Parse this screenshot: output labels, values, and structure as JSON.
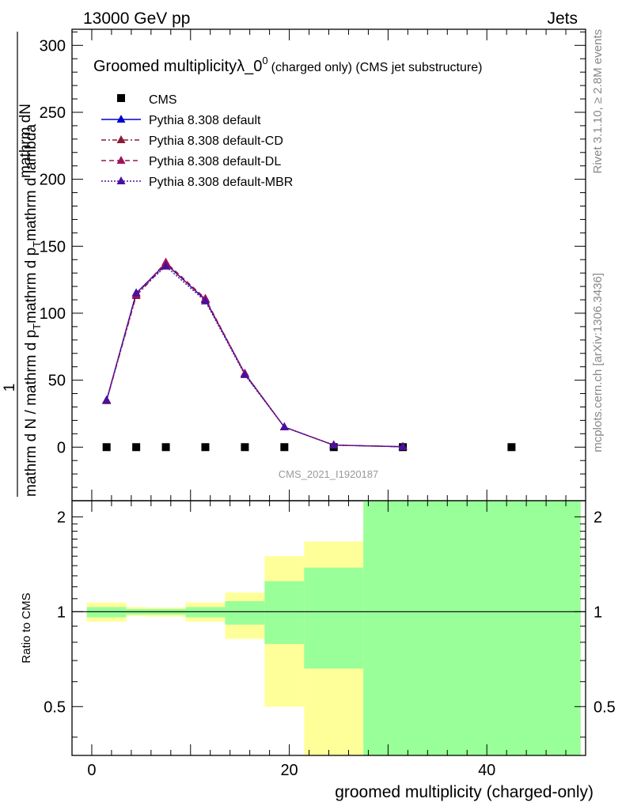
{
  "header": {
    "left": "13000 GeV pp",
    "right": "Jets"
  },
  "side_labels": {
    "rivet": "Rivet 3.1.10, ≥ 2.8M events",
    "mcplots": "mcplots.cern.ch [arXiv:1306.3436]"
  },
  "watermark": "CMS_2021_I1920187",
  "chart_data": [
    {
      "type": "line",
      "title": "Groomed multiplicityλ_0",
      "title_sup": "0",
      "title_suffix": "(charged only) (CMS jet substructure)",
      "ylabel_numerator": "mathrm dN",
      "ylabel_prefix": "1",
      "ylabel_denominator": "mathrm d N / mathrm d p",
      "ylabel_sub": "T",
      "ylabel_rest": "mathrm d p",
      "ylabel_rest_sub": "T",
      "ylabel_tail": "mathrm d lambda",
      "ylim": [
        -40,
        312
      ],
      "xlim": [
        -2,
        50
      ],
      "y_ticks": [
        "0",
        "50",
        "100",
        "150",
        "200",
        "250",
        "300"
      ],
      "legend_position": "top-left",
      "series": [
        {
          "name": "CMS",
          "style": "marker-square",
          "color": "#000000",
          "x": [
            1.5,
            4.5,
            7.5,
            11.5,
            15.5,
            19.5,
            24.5,
            31.5,
            42.5
          ],
          "y": [
            0,
            0,
            0,
            0,
            0,
            0,
            0,
            0,
            0
          ]
        },
        {
          "name": "Pythia 8.308 default",
          "style": "solid",
          "color": "#0000cc",
          "x": [
            1.5,
            4.5,
            7.5,
            11.5,
            15.5,
            19.5,
            24.5,
            31.5
          ],
          "y": [
            35,
            115,
            137,
            110,
            55,
            15,
            1.5,
            0.3
          ]
        },
        {
          "name": "Pythia 8.308 default-CD",
          "style": "dashdot",
          "color": "#8b1a3a",
          "x": [
            1.5,
            4.5,
            7.5,
            11.5,
            15.5,
            19.5,
            24.5,
            31.5
          ],
          "y": [
            34.5,
            113,
            136.5,
            110.5,
            54.5,
            15,
            1.5,
            0.3
          ]
        },
        {
          "name": "Pythia 8.308 default-DL",
          "style": "dashed",
          "color": "#a0105a",
          "x": [
            1.5,
            4.5,
            7.5,
            11.5,
            15.5,
            19.5,
            24.5,
            31.5
          ],
          "y": [
            35,
            114,
            138,
            111,
            55,
            15,
            1.6,
            0.3
          ]
        },
        {
          "name": "Pythia 8.308 default-MBR",
          "style": "dotted",
          "color": "#4b0fa0",
          "x": [
            1.5,
            4.5,
            7.5,
            11.5,
            15.5,
            19.5,
            24.5,
            31.5
          ],
          "y": [
            35,
            115,
            135,
            109,
            54,
            15,
            1.5,
            0.3
          ]
        }
      ]
    },
    {
      "type": "area",
      "ylabel": "Ratio to CMS",
      "xlabel": "groomed multiplicity (charged-only)",
      "xlim": [
        -2,
        50
      ],
      "ylim": [
        0.35,
        2.25
      ],
      "x_ticks": [
        "0",
        "20",
        "40"
      ],
      "y_ticks": [
        "0.5",
        "1",
        "2"
      ],
      "reference": 1,
      "bins": [
        {
          "lo": -0.5,
          "hi": 3.5,
          "yellow": [
            0.93,
            1.07
          ],
          "green": [
            0.96,
            1.035
          ]
        },
        {
          "lo": 3.5,
          "hi": 5.5,
          "yellow": [
            0.97,
            1.035
          ],
          "green": [
            0.98,
            1.02
          ]
        },
        {
          "lo": 5.5,
          "hi": 9.5,
          "yellow": [
            0.965,
            1.03
          ],
          "green": [
            0.98,
            1.02
          ]
        },
        {
          "lo": 9.5,
          "hi": 13.5,
          "yellow": [
            0.93,
            1.07
          ],
          "green": [
            0.96,
            1.035
          ]
        },
        {
          "lo": 13.5,
          "hi": 17.5,
          "yellow": [
            0.82,
            1.15
          ],
          "green": [
            0.91,
            1.08
          ]
        },
        {
          "lo": 17.5,
          "hi": 21.5,
          "yellow": [
            0.5,
            1.5
          ],
          "green": [
            0.79,
            1.25
          ]
        },
        {
          "lo": 21.5,
          "hi": 27.5,
          "yellow": [
            0.35,
            1.67
          ],
          "green": [
            0.66,
            1.38
          ]
        },
        {
          "lo": 27.5,
          "hi": 49.5,
          "yellow": [
            0.35,
            2.25
          ],
          "green": [
            0.35,
            2.25
          ]
        }
      ]
    }
  ],
  "colors": {
    "yellow_band": "#ffff99",
    "green_band": "#99ff99"
  }
}
